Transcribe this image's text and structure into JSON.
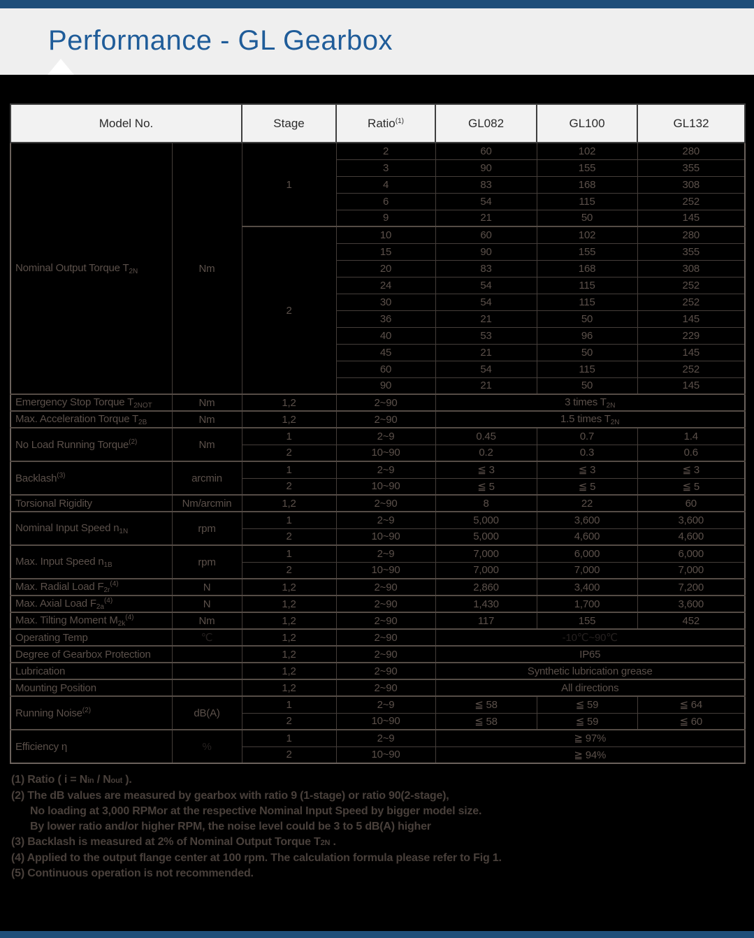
{
  "page": {
    "title": "Performance - GL Gearbox",
    "colors": {
      "accent_bar": "#1f4e79",
      "title_text": "#1f5c99",
      "header_band": "#efefef",
      "page_bg": "#000000",
      "table_text": "#5b504a"
    }
  },
  "table": {
    "headers": {
      "model_no": "Model No.",
      "stage": "Stage",
      "ratio": "Ratio",
      "ratio_sup": "(1)",
      "gl082": "GL082",
      "gl100": "GL100",
      "gl132": "GL132"
    },
    "torque": {
      "label": "Nominal Output Torque T",
      "label_sub": "2N",
      "unit": "Nm",
      "stage1_label": "1",
      "stage2_label": "2",
      "s1": [
        [
          "2",
          "60",
          "102",
          "280"
        ],
        [
          "3",
          "90",
          "155",
          "355"
        ],
        [
          "4",
          "83",
          "168",
          "308"
        ],
        [
          "6",
          "54",
          "115",
          "252"
        ],
        [
          "9",
          "21",
          "50",
          "145"
        ]
      ],
      "s2": [
        [
          "10",
          "60",
          "102",
          "280"
        ],
        [
          "15",
          "90",
          "155",
          "355"
        ],
        [
          "20",
          "83",
          "168",
          "308"
        ],
        [
          "24",
          "54",
          "115",
          "252"
        ],
        [
          "30",
          "54",
          "115",
          "252"
        ],
        [
          "36",
          "21",
          "50",
          "145"
        ],
        [
          "40",
          "53",
          "96",
          "229"
        ],
        [
          "45",
          "21",
          "50",
          "145"
        ],
        [
          "60",
          "54",
          "115",
          "252"
        ],
        [
          "90",
          "21",
          "50",
          "145"
        ]
      ]
    },
    "specs": {
      "emergency": {
        "label": "Emergency Stop Torque T",
        "label_sub": "2NOT",
        "unit": "Nm",
        "stage": "1,2",
        "ratio": "2~90",
        "value": "3 times T",
        "value_sub": "2N"
      },
      "accel": {
        "label": "Max. Acceleration Torque T",
        "label_sub": "2B",
        "unit": "Nm",
        "stage": "1,2",
        "ratio": "2~90",
        "value": "1.5 times T",
        "value_sub": "2N"
      },
      "no_load": {
        "label": "No Load Running Torque",
        "label_sup": "(2)",
        "unit": "Nm",
        "rows": [
          [
            "1",
            "2~9",
            "0.45",
            "0.7",
            "1.4"
          ],
          [
            "2",
            "10~90",
            "0.2",
            "0.3",
            "0.6"
          ]
        ]
      },
      "backlash": {
        "label": "Backlash",
        "label_sup": "(3)",
        "unit": "arcmin",
        "rows": [
          [
            "1",
            "2~9",
            "≦ 3",
            "≦ 3",
            "≦ 3"
          ],
          [
            "2",
            "10~90",
            "≦ 5",
            "≦ 5",
            "≦ 5"
          ]
        ]
      },
      "torsional": {
        "label": "Torsional Rigidity",
        "unit": "Nm/arcmin",
        "stage": "1,2",
        "ratio": "2~90",
        "values": [
          "8",
          "22",
          "60"
        ]
      },
      "nominal_input": {
        "label": "Nominal Input Speed n",
        "label_sub": "1N",
        "unit": "rpm",
        "rows": [
          [
            "1",
            "2~9",
            "5,000",
            "3,600",
            "3,600"
          ],
          [
            "2",
            "10~90",
            "5,000",
            "4,600",
            "4,600"
          ]
        ]
      },
      "max_input": {
        "label": "Max. Input Speed n",
        "label_sub": "1B",
        "unit": "rpm",
        "rows": [
          [
            "1",
            "2~9",
            "7,000",
            "6,000",
            "6,000"
          ],
          [
            "2",
            "10~90",
            "7,000",
            "7,000",
            "7,000"
          ]
        ]
      },
      "radial": {
        "label": "Max. Radial Load F",
        "label_sub": "2r",
        "label_sup": "(4)",
        "unit": "N",
        "stage": "1,2",
        "ratio": "2~90",
        "values": [
          "2,860",
          "3,400",
          "7,200"
        ]
      },
      "axial": {
        "label": "Max. Axial Load F",
        "label_sub": "2a",
        "label_sup": "(4)",
        "unit": "N",
        "stage": "1,2",
        "ratio": "2~90",
        "values": [
          "1,430",
          "1,700",
          "3,600"
        ]
      },
      "tilting": {
        "label": "Max. Tilting Moment  M",
        "label_sub": "2k",
        "label_sup": "(4)",
        "unit": "Nm",
        "stage": "1,2",
        "ratio": "2~90",
        "values": [
          "117",
          "155",
          "452"
        ]
      },
      "temp": {
        "label": "Operating Temp",
        "unit": "℃",
        "stage": "1,2",
        "ratio": "2~90",
        "value": "-10℃~90℃"
      },
      "protection": {
        "label": "Degree of Gearbox Protection",
        "unit": "",
        "stage": "1,2",
        "ratio": "2~90",
        "value": "IP65"
      },
      "lubrication": {
        "label": "Lubrication",
        "unit": "",
        "stage": "1,2",
        "ratio": "2~90",
        "value": "Synthetic lubrication grease"
      },
      "mounting": {
        "label": "Mounting Position",
        "unit": "",
        "stage": "1,2",
        "ratio": "2~90",
        "value": "All directions"
      },
      "noise": {
        "label": "Running Noise",
        "label_sup": "(2)",
        "unit": "dB(A)",
        "rows": [
          [
            "1",
            "2~9",
            "≦ 58",
            "≦ 59",
            "≦ 64"
          ],
          [
            "2",
            "10~90",
            "≦ 58",
            "≦ 59",
            "≦ 60"
          ]
        ]
      },
      "efficiency": {
        "label": "Efficiency  η",
        "unit": "%",
        "rows": [
          [
            "1",
            "2~9",
            "≧ 97%"
          ],
          [
            "2",
            "10~90",
            "≧ 94%"
          ]
        ]
      }
    }
  },
  "footnotes": {
    "f1a": "(1) Ratio ( i = N",
    "f1b": "in",
    "f1c": " / N",
    "f1d": "out",
    "f1e": " ).",
    "f2": "(2) The dB values are measured by gearbox with ratio 9 (1-stage) or ratio 90(2-stage),",
    "f2b": "No loading at 3,000 RPMor at the respective Nominal Input Speed by bigger model size.",
    "f2c": "By lower ratio and/or higher RPM, the noise level could be 3 to 5 dB(A) higher",
    "f3a": "(3) Backlash is measured at 2% of Nominal Output Torque T",
    "f3b": "2N",
    "f3c": " .",
    "f4": "(4) Applied to the output flange center at 100 rpm. The calculation formula please refer to Fig 1.",
    "f5": "(5) Continuous operation is not recommended."
  }
}
